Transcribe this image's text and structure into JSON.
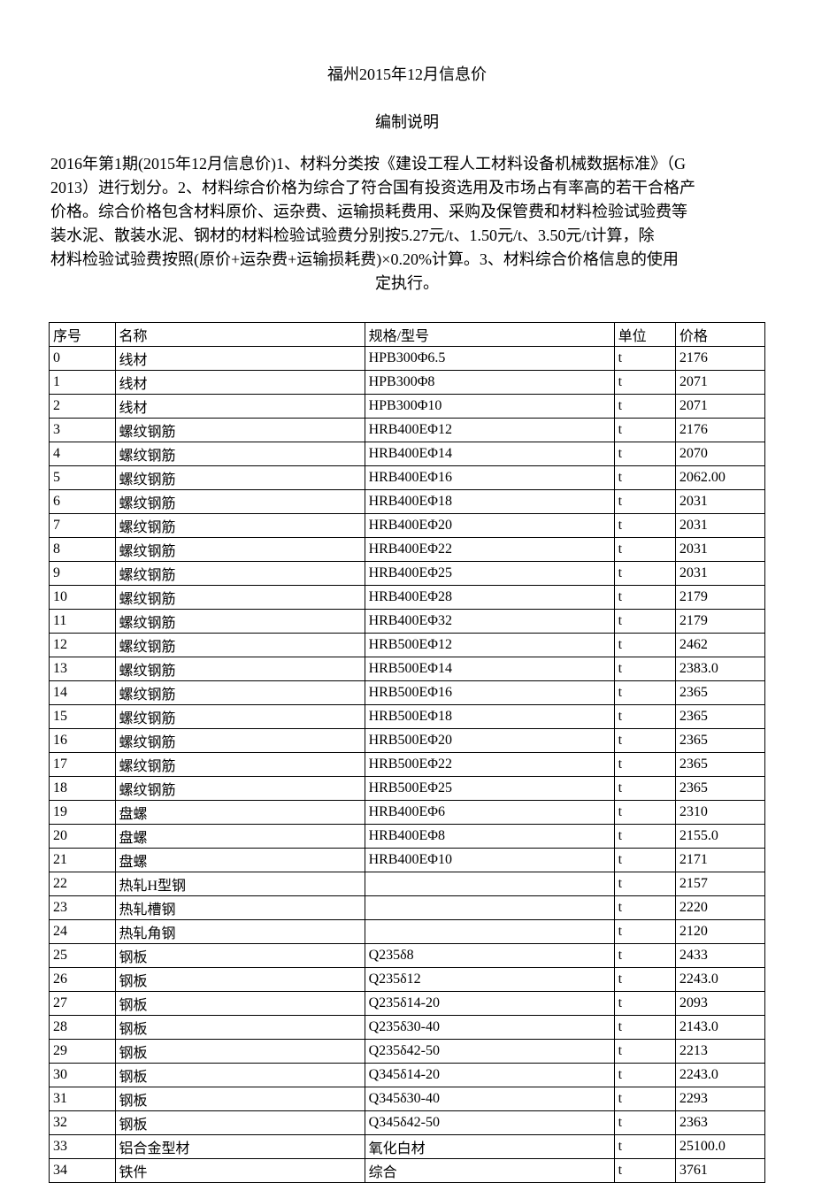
{
  "title": "福州2015年12月信息价",
  "subtitle": "编制说明",
  "description_lines": [
    "2016年第1期(2015年12月信息价)1、材料分类按《建设工程人工材料设备机械数据标准》（G",
    "2013）进行划分。2、材料综合价格为综合了符合国有投资选用及市场占有率高的若干合格产",
    "价格。综合价格包含材料原价、运杂费、运输损耗费用、采购及保管费和材料检验试验费等",
    "装水泥、散装水泥、钢材的材料检验试验费分别按5.27元/t、1.50元/t、3.50元/t计算，除",
    "材料检验试验费按照(原价+运杂费+运输损耗费)×0.20%计算。3、材料综合价格信息的使用"
  ],
  "description_last": "定执行。",
  "table": {
    "headers": [
      "序号",
      "名称",
      "规格/型号",
      "单位",
      "价格"
    ],
    "rows": [
      [
        "0",
        "线材",
        "HPB300Φ6.5",
        "t",
        "2176"
      ],
      [
        "1",
        "线材",
        "HPB300Φ8",
        "t",
        "2071"
      ],
      [
        "2",
        "线材",
        "HPB300Φ10",
        "t",
        "2071"
      ],
      [
        "3",
        "螺纹钢筋",
        "HRB400EΦ12",
        "t",
        "2176"
      ],
      [
        "4",
        "螺纹钢筋",
        "HRB400EΦ14",
        "t",
        "2070"
      ],
      [
        "5",
        "螺纹钢筋",
        "HRB400EΦ16",
        "t",
        "2062.00"
      ],
      [
        "6",
        "螺纹钢筋",
        "HRB400EΦ18",
        "t",
        "2031"
      ],
      [
        "7",
        "螺纹钢筋",
        "HRB400EΦ20",
        "t",
        "2031"
      ],
      [
        "8",
        "螺纹钢筋",
        "HRB400EΦ22",
        "t",
        "2031"
      ],
      [
        "9",
        "螺纹钢筋",
        "HRB400EΦ25",
        "t",
        "2031"
      ],
      [
        "10",
        "螺纹钢筋",
        "HRB400EΦ28",
        "t",
        "2179"
      ],
      [
        "11",
        "螺纹钢筋",
        "HRB400EΦ32",
        "t",
        "2179"
      ],
      [
        "12",
        "螺纹钢筋",
        "HRB500EΦ12",
        "t",
        "2462"
      ],
      [
        "13",
        "螺纹钢筋",
        "HRB500EΦ14",
        "t",
        "2383.0"
      ],
      [
        "14",
        "螺纹钢筋",
        "HRB500EΦ16",
        "t",
        "2365"
      ],
      [
        "15",
        "螺纹钢筋",
        "HRB500EΦ18",
        "t",
        "2365"
      ],
      [
        "16",
        "螺纹钢筋",
        "HRB500EΦ20",
        "t",
        "2365"
      ],
      [
        "17",
        "螺纹钢筋",
        "HRB500EΦ22",
        "t",
        "2365"
      ],
      [
        "18",
        "螺纹钢筋",
        "HRB500EΦ25",
        "t",
        "2365"
      ],
      [
        "19",
        "盘螺",
        "HRB400EΦ6",
        "t",
        "2310"
      ],
      [
        "20",
        "盘螺",
        "HRB400EΦ8",
        "t",
        "2155.0"
      ],
      [
        "21",
        "盘螺",
        "HRB400EΦ10",
        "t",
        "2171"
      ],
      [
        "22",
        "热轧H型钢",
        "",
        "t",
        "2157"
      ],
      [
        "23",
        "热轧槽钢",
        "",
        "t",
        "2220"
      ],
      [
        "24",
        "热轧角钢",
        "",
        "t",
        "2120"
      ],
      [
        "25",
        "钢板",
        "Q235δ8",
        "t",
        "2433"
      ],
      [
        "26",
        "钢板",
        "Q235δ12",
        "t",
        "2243.0"
      ],
      [
        "27",
        "钢板",
        "Q235δ14-20",
        "t",
        "2093"
      ],
      [
        "28",
        "钢板",
        "Q235δ30-40",
        "t",
        "2143.0"
      ],
      [
        "29",
        "钢板",
        "Q235δ42-50",
        "t",
        "2213"
      ],
      [
        "30",
        "钢板",
        "Q345δ14-20",
        "t",
        "2243.0"
      ],
      [
        "31",
        "钢板",
        "Q345δ30-40",
        "t",
        "2293"
      ],
      [
        "32",
        "钢板",
        "Q345δ42-50",
        "t",
        "2363"
      ],
      [
        "33",
        "铝合金型材",
        "氧化白材",
        "t",
        "25100.0"
      ],
      [
        "34",
        "铁件",
        "综合",
        "t",
        "3761"
      ]
    ]
  }
}
